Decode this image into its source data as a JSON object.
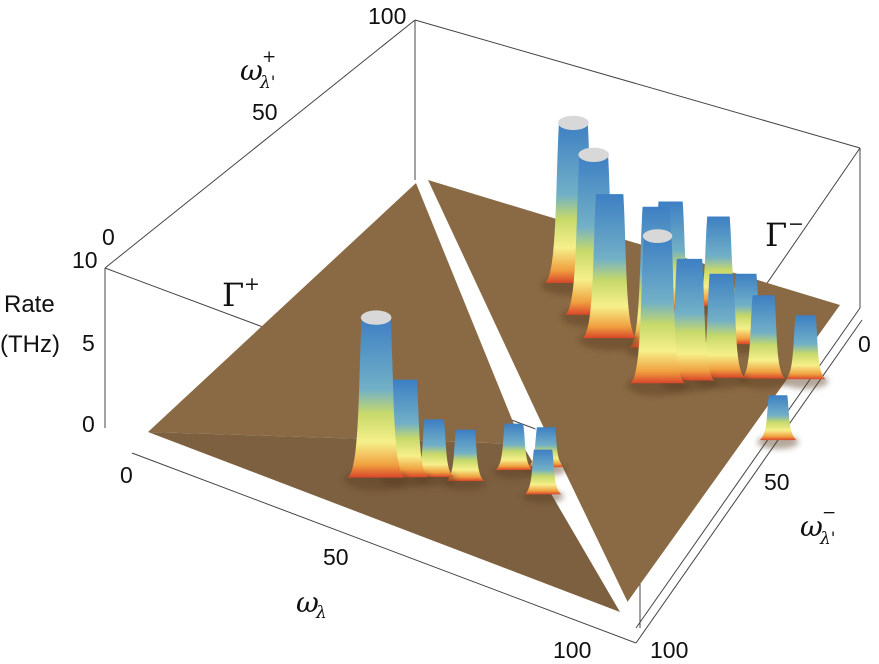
{
  "chart_data": {
    "type": "surface3d",
    "title": "",
    "z_axis": {
      "label_line1": "Rate",
      "label_line2": "(THz)",
      "ticks": [
        "0",
        "5",
        "10"
      ],
      "back_tick": "0",
      "range": [
        0,
        10
      ]
    },
    "x_axis": {
      "symbol": "ω",
      "subscript": "λ",
      "ticks": [
        "0",
        "50",
        "100"
      ],
      "range": [
        0,
        100
      ]
    },
    "y_plus_axis": {
      "symbol": "ω",
      "subscript": "λ'",
      "superscript": "+",
      "ticks": [
        "50",
        "100"
      ],
      "range": [
        0,
        100
      ]
    },
    "y_minus_axis": {
      "symbol": "ω",
      "subscript": "λ'",
      "superscript": "−",
      "ticks": [
        "0",
        "50",
        "100"
      ],
      "range": [
        0,
        100
      ]
    },
    "regions": [
      {
        "label": "Γ",
        "label_sup": "+",
        "peaks": [
          {
            "x": 42,
            "y": 12,
            "z": 10.0,
            "clipped": true
          },
          {
            "x": 46,
            "y": 15,
            "z": 6.1
          },
          {
            "x": 50,
            "y": 18,
            "z": 3.6
          },
          {
            "x": 55,
            "y": 20,
            "z": 3.2
          },
          {
            "x": 60,
            "y": 28,
            "z": 2.9
          },
          {
            "x": 68,
            "y": 24,
            "z": 2.8
          },
          {
            "x": 64,
            "y": 32,
            "z": 2.5
          }
        ]
      },
      {
        "label": "Γ",
        "label_sup": "−",
        "peaks": [
          {
            "x": 38,
            "y": 32,
            "z": 10.0,
            "clipped": true
          },
          {
            "x": 46,
            "y": 25,
            "z": 10.0,
            "clipped": true
          },
          {
            "x": 52,
            "y": 20,
            "z": 9.0
          },
          {
            "x": 60,
            "y": 22,
            "z": 8.8
          },
          {
            "x": 66,
            "y": 12,
            "z": 9.2,
            "clipped": true
          },
          {
            "x": 70,
            "y": 16,
            "z": 7.6
          },
          {
            "x": 74,
            "y": 20,
            "z": 6.5
          },
          {
            "x": 80,
            "y": 24,
            "z": 5.2
          },
          {
            "x": 86,
            "y": 28,
            "z": 4.0
          },
          {
            "x": 56,
            "y": 34,
            "z": 6.8
          },
          {
            "x": 62,
            "y": 40,
            "z": 5.6
          },
          {
            "x": 72,
            "y": 32,
            "z": 4.4
          },
          {
            "x": 92,
            "y": 8,
            "z": 2.8
          }
        ]
      }
    ]
  }
}
